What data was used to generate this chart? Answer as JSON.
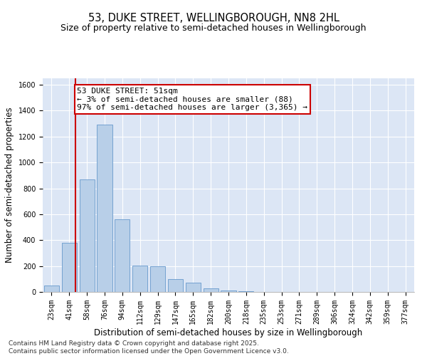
{
  "title": "53, DUKE STREET, WELLINGBOROUGH, NN8 2HL",
  "subtitle": "Size of property relative to semi-detached houses in Wellingborough",
  "xlabel": "Distribution of semi-detached houses by size in Wellingborough",
  "ylabel": "Number of semi-detached properties",
  "categories": [
    "23sqm",
    "41sqm",
    "58sqm",
    "76sqm",
    "94sqm",
    "112sqm",
    "129sqm",
    "147sqm",
    "165sqm",
    "182sqm",
    "200sqm",
    "218sqm",
    "235sqm",
    "253sqm",
    "271sqm",
    "289sqm",
    "306sqm",
    "324sqm",
    "342sqm",
    "359sqm",
    "377sqm"
  ],
  "values": [
    50,
    380,
    870,
    1290,
    560,
    205,
    200,
    100,
    70,
    30,
    12,
    4,
    0,
    0,
    0,
    0,
    0,
    0,
    0,
    0,
    0
  ],
  "bar_color": "#b8cfe8",
  "bar_edge_color": "#6699cc",
  "bar_width": 0.85,
  "annotation_text_line1": "53 DUKE STREET: 51sqm",
  "annotation_text_line2": "← 3% of semi-detached houses are smaller (88)",
  "annotation_text_line3": "97% of semi-detached houses are larger (3,365) →",
  "vline_color": "#cc0000",
  "vline_x": 1.35,
  "ylim": [
    0,
    1650
  ],
  "yticks": [
    0,
    200,
    400,
    600,
    800,
    1000,
    1200,
    1400,
    1600
  ],
  "background_color": "#dce6f5",
  "footer_line1": "Contains HM Land Registry data © Crown copyright and database right 2025.",
  "footer_line2": "Contains public sector information licensed under the Open Government Licence v3.0.",
  "title_fontsize": 10.5,
  "subtitle_fontsize": 9,
  "annotation_fontsize": 8,
  "tick_fontsize": 7,
  "label_fontsize": 8.5,
  "footer_fontsize": 6.5
}
